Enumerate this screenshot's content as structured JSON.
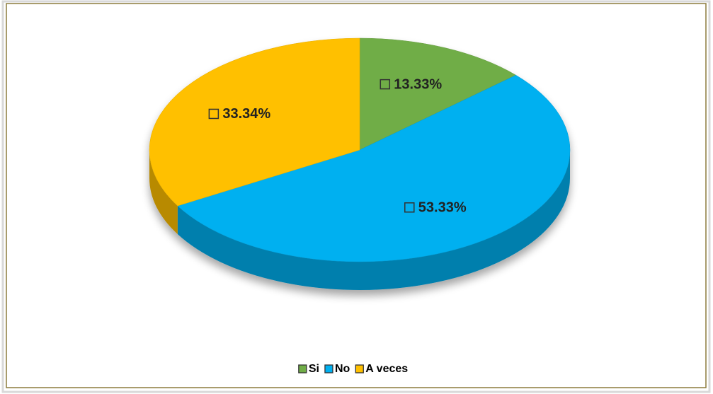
{
  "chart_data": {
    "type": "pie",
    "categories": [
      "Si",
      "No",
      "A veces"
    ],
    "values": [
      13.33,
      53.33,
      33.34
    ],
    "value_labels": [
      "13.33%",
      "53.33%",
      "33.34%"
    ],
    "colors": [
      "#70ad47",
      "#00b0f0",
      "#ffc000"
    ],
    "legend": "bottom"
  }
}
